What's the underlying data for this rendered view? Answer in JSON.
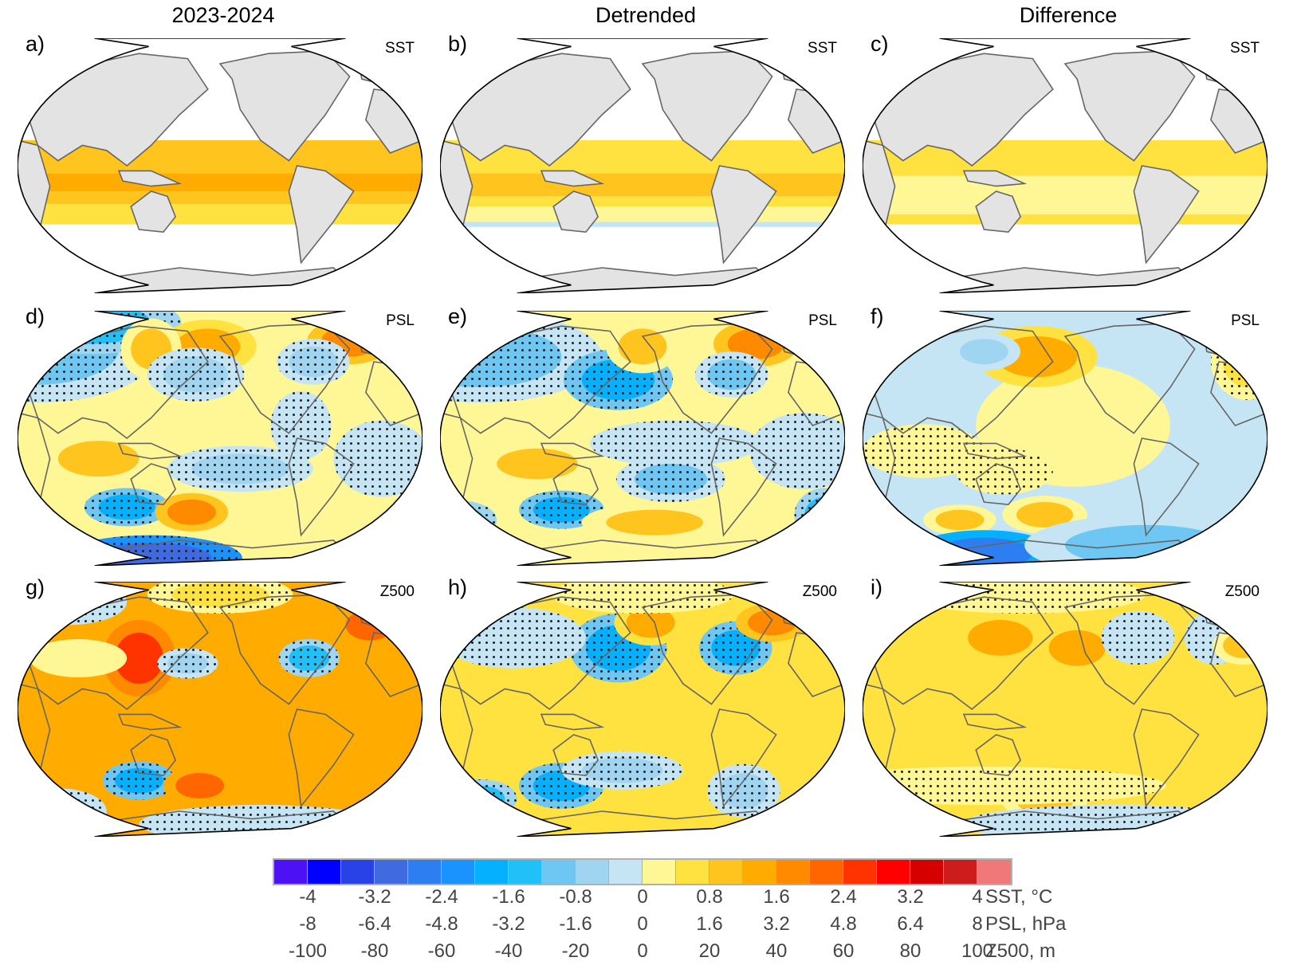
{
  "columns": [
    "2023-2024",
    "Detrended",
    "Difference"
  ],
  "panels": [
    {
      "letter": "a)",
      "variable": "SST",
      "row": 0,
      "col": 0,
      "pattern": "sst_full"
    },
    {
      "letter": "b)",
      "variable": "SST",
      "row": 0,
      "col": 1,
      "pattern": "sst_detr"
    },
    {
      "letter": "c)",
      "variable": "SST",
      "row": 0,
      "col": 2,
      "pattern": "sst_diff"
    },
    {
      "letter": "d)",
      "variable": "PSL",
      "row": 1,
      "col": 0,
      "pattern": "psl_full"
    },
    {
      "letter": "e)",
      "variable": "PSL",
      "row": 1,
      "col": 1,
      "pattern": "psl_detr"
    },
    {
      "letter": "f)",
      "variable": "PSL",
      "row": 1,
      "col": 2,
      "pattern": "psl_diff"
    },
    {
      "letter": "g)",
      "variable": "Z500",
      "row": 2,
      "col": 0,
      "pattern": "z_full"
    },
    {
      "letter": "h)",
      "variable": "Z500",
      "row": 2,
      "col": 1,
      "pattern": "z_detr"
    },
    {
      "letter": "i)",
      "variable": "Z500",
      "row": 2,
      "col": 2,
      "pattern": "z_diff"
    }
  ],
  "chart_data": {
    "type": "heatmap",
    "title": "",
    "column_titles": [
      "2023-2024",
      "Detrended",
      "Difference"
    ],
    "projection": "Robinson (Pacific-centered global maps)",
    "stippling": "dots indicate statistical significance",
    "colorbar": {
      "colors": [
        "#4c12f5",
        "#0000ff",
        "#2842e8",
        "#3f6ae0",
        "#2d7ef0",
        "#1a93ff",
        "#05b0ff",
        "#22c0f8",
        "#6ec6f2",
        "#a0d5f2",
        "#c5e5f5",
        "#fff795",
        "#ffe240",
        "#ffc51e",
        "#ffab00",
        "#ff8a00",
        "#ff6600",
        "#ff3300",
        "#ff0000",
        "#d70000",
        "#cd1c1c",
        "#f07878"
      ],
      "scales": [
        {
          "label": "SST, °C",
          "ticks": [
            "-4",
            "-3.2",
            "-2.4",
            "-1.6",
            "-0.8",
            "0",
            "0.8",
            "1.6",
            "2.4",
            "3.2",
            "4"
          ]
        },
        {
          "label": "PSL, hPa",
          "ticks": [
            "-8",
            "-6.4",
            "-4.8",
            "-3.2",
            "-1.6",
            "0",
            "1.6",
            "3.2",
            "4.8",
            "6.4",
            "8"
          ]
        },
        {
          "label": "Z500, m",
          "ticks": [
            "-100",
            "-80",
            "-60",
            "-40",
            "-20",
            "0",
            "20",
            "40",
            "60",
            "80",
            "100"
          ]
        }
      ]
    }
  }
}
